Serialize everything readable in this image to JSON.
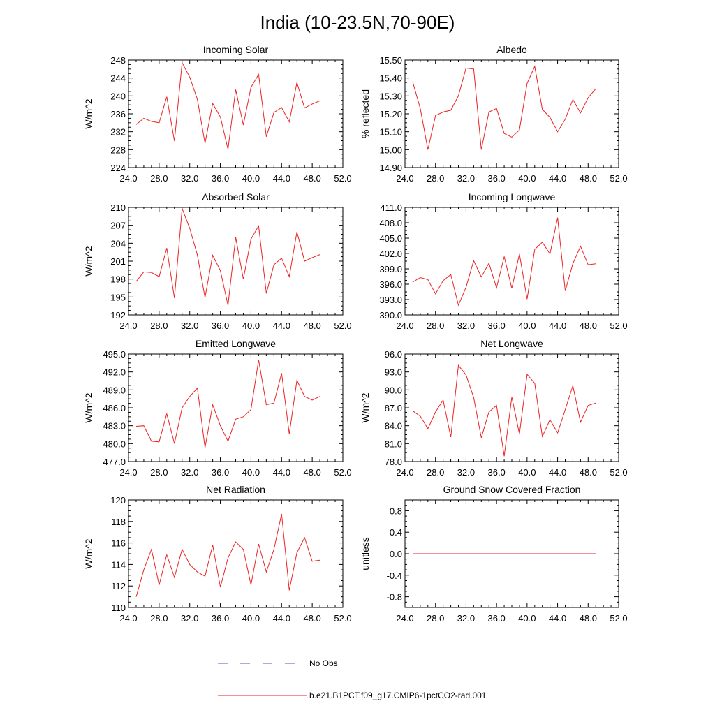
{
  "figure": {
    "title": "India (10-23.5N,70-90E)"
  },
  "legend": {
    "entries": [
      {
        "label": "No Obs",
        "color": "#5a5ab4",
        "style": "dashed"
      },
      {
        "label": "b.e21.B1PCT.f09_g17.CMIP6-1pctCO2-rad.001",
        "color": "#ee2222",
        "style": "solid"
      }
    ]
  },
  "colors": {
    "series": "#ee2222",
    "axis": "#000000",
    "obs": "#5a5ab4"
  },
  "chart_data": [
    {
      "type": "line",
      "title": "Incoming Solar",
      "ylabel": "W/m^2",
      "xlim": [
        24,
        52
      ],
      "ylim": [
        224,
        248
      ],
      "xticks": [
        "24.0",
        "28.0",
        "32.0",
        "36.0",
        "40.0",
        "44.0",
        "48.0",
        "52.0"
      ],
      "xtick_values": [
        24,
        28,
        32,
        36,
        40,
        44,
        48,
        52
      ],
      "yticks": [
        "224",
        "228",
        "232",
        "236",
        "240",
        "244",
        "248"
      ],
      "ytick_values": [
        224,
        228,
        232,
        236,
        240,
        244,
        248
      ],
      "x": [
        25,
        26,
        27,
        28,
        29,
        30,
        31,
        32,
        33,
        34,
        35,
        36,
        37,
        38,
        39,
        40,
        41,
        42,
        43,
        44,
        45,
        46,
        47,
        48,
        49
      ],
      "series": [
        {
          "values": [
            233.6,
            235.0,
            234.3,
            234.0,
            239.8,
            229.9,
            247.4,
            244.2,
            239.2,
            229.4,
            238.3,
            235.3,
            228.1,
            241.4,
            233.5,
            241.9,
            244.8,
            230.9,
            236.3,
            237.4,
            234.2,
            243.0,
            237.3,
            238.2,
            238.9
          ]
        }
      ]
    },
    {
      "type": "line",
      "title": "Albedo",
      "ylabel": "% reflected",
      "xlim": [
        24,
        52
      ],
      "ylim": [
        14.9,
        15.5
      ],
      "xticks": [
        "24.0",
        "28.0",
        "32.0",
        "36.0",
        "40.0",
        "44.0",
        "48.0",
        "52.0"
      ],
      "xtick_values": [
        24,
        28,
        32,
        36,
        40,
        44,
        48,
        52
      ],
      "yticks": [
        "14.90",
        "15.00",
        "15.10",
        "15.20",
        "15.30",
        "15.40",
        "15.50"
      ],
      "ytick_values": [
        14.9,
        15.0,
        15.1,
        15.2,
        15.3,
        15.4,
        15.5
      ],
      "x": [
        25,
        26,
        27,
        28,
        29,
        30,
        31,
        32,
        33,
        34,
        35,
        36,
        37,
        38,
        39,
        40,
        41,
        42,
        43,
        44,
        45,
        46,
        47,
        48,
        49
      ],
      "series": [
        {
          "values": [
            15.38,
            15.23,
            15.0,
            15.19,
            15.21,
            15.22,
            15.3,
            15.455,
            15.45,
            15.0,
            15.21,
            15.23,
            15.09,
            15.07,
            15.11,
            15.37,
            15.465,
            15.225,
            15.18,
            15.1,
            15.17,
            15.28,
            15.205,
            15.29,
            15.34
          ]
        }
      ]
    },
    {
      "type": "line",
      "title": "Absorbed Solar",
      "ylabel": "W/m^2",
      "xlim": [
        24,
        52
      ],
      "ylim": [
        192,
        210
      ],
      "xticks": [
        "24.0",
        "28.0",
        "32.0",
        "36.0",
        "40.0",
        "44.0",
        "48.0",
        "52.0"
      ],
      "xtick_values": [
        24,
        28,
        32,
        36,
        40,
        44,
        48,
        52
      ],
      "yticks": [
        "192",
        "195",
        "198",
        "201",
        "204",
        "207",
        "210"
      ],
      "ytick_values": [
        192,
        195,
        198,
        201,
        204,
        207,
        210
      ],
      "x": [
        25,
        26,
        27,
        28,
        29,
        30,
        31,
        32,
        33,
        34,
        35,
        36,
        37,
        38,
        39,
        40,
        41,
        42,
        43,
        44,
        45,
        46,
        47,
        48,
        49
      ],
      "series": [
        {
          "values": [
            197.6,
            199.2,
            199.1,
            198.4,
            203.2,
            194.8,
            209.8,
            206.5,
            202.0,
            194.9,
            202.0,
            199.4,
            193.6,
            205.0,
            198.0,
            204.7,
            206.9,
            195.6,
            200.4,
            201.5,
            198.4,
            205.9,
            201.0,
            201.6,
            202.1
          ]
        }
      ]
    },
    {
      "type": "line",
      "title": "Incoming Longwave",
      "ylabel": "",
      "xlim": [
        24,
        52
      ],
      "ylim": [
        390,
        411
      ],
      "xticks": [
        "24.0",
        "28.0",
        "32.0",
        "36.0",
        "40.0",
        "44.0",
        "48.0",
        "52.0"
      ],
      "xtick_values": [
        24,
        28,
        32,
        36,
        40,
        44,
        48,
        52
      ],
      "yticks": [
        "390.0",
        "393.0",
        "396.0",
        "399.0",
        "402.0",
        "405.0",
        "408.0",
        "411.0"
      ],
      "ytick_values": [
        390,
        393,
        396,
        399,
        402,
        405,
        408,
        411
      ],
      "x": [
        25,
        26,
        27,
        28,
        29,
        30,
        31,
        32,
        33,
        34,
        35,
        36,
        37,
        38,
        39,
        40,
        41,
        42,
        43,
        44,
        45,
        46,
        47,
        48,
        49
      ],
      "series": [
        {
          "values": [
            396.4,
            397.3,
            396.9,
            394.1,
            396.7,
            397.9,
            391.9,
            395.4,
            400.6,
            397.4,
            400.1,
            395.3,
            401.4,
            395.2,
            401.9,
            393.1,
            402.8,
            404.2,
            401.9,
            409.0,
            394.7,
            400.0,
            403.4,
            399.8,
            400.0
          ]
        }
      ]
    },
    {
      "type": "line",
      "title": "Emitted Longwave",
      "ylabel": "W/m^2",
      "xlim": [
        24,
        52
      ],
      "ylim": [
        477,
        495
      ],
      "xticks": [
        "24.0",
        "28.0",
        "32.0",
        "36.0",
        "40.0",
        "44.0",
        "48.0",
        "52.0"
      ],
      "xtick_values": [
        24,
        28,
        32,
        36,
        40,
        44,
        48,
        52
      ],
      "yticks": [
        "477.0",
        "480.0",
        "483.0",
        "486.0",
        "489.0",
        "492.0",
        "495.0"
      ],
      "ytick_values": [
        477,
        480,
        483,
        486,
        489,
        492,
        495
      ],
      "x": [
        25,
        26,
        27,
        28,
        29,
        30,
        31,
        32,
        33,
        34,
        35,
        36,
        37,
        38,
        39,
        40,
        41,
        42,
        43,
        44,
        45,
        46,
        47,
        48,
        49
      ],
      "series": [
        {
          "values": [
            482.9,
            483.0,
            480.4,
            480.3,
            485.0,
            480.0,
            486.0,
            487.9,
            489.3,
            479.3,
            486.5,
            483.0,
            480.4,
            484.1,
            484.5,
            485.7,
            494.0,
            486.5,
            486.8,
            491.8,
            481.6,
            490.6,
            487.9,
            487.3,
            487.9
          ]
        }
      ]
    },
    {
      "type": "line",
      "title": "Net Longwave",
      "ylabel": "W/m^2",
      "xlim": [
        24,
        52
      ],
      "ylim": [
        78,
        96
      ],
      "xticks": [
        "24.0",
        "28.0",
        "32.0",
        "36.0",
        "40.0",
        "44.0",
        "48.0",
        "52.0"
      ],
      "xtick_values": [
        24,
        28,
        32,
        36,
        40,
        44,
        48,
        52
      ],
      "yticks": [
        "78.0",
        "81.0",
        "84.0",
        "87.0",
        "90.0",
        "93.0",
        "96.0"
      ],
      "ytick_values": [
        78,
        81,
        84,
        87,
        90,
        93,
        96
      ],
      "x": [
        25,
        26,
        27,
        28,
        29,
        30,
        31,
        32,
        33,
        34,
        35,
        36,
        37,
        38,
        39,
        40,
        41,
        42,
        43,
        44,
        45,
        46,
        47,
        48,
        49
      ],
      "series": [
        {
          "values": [
            86.5,
            85.6,
            83.5,
            86.3,
            88.3,
            82.1,
            94.1,
            92.5,
            88.7,
            82.0,
            86.3,
            87.4,
            78.9,
            88.8,
            82.6,
            92.6,
            91.1,
            82.2,
            85.0,
            82.8,
            86.7,
            90.7,
            84.6,
            87.4,
            87.8
          ]
        }
      ]
    },
    {
      "type": "line",
      "title": "Net Radiation",
      "ylabel": "W/m^2",
      "xlim": [
        24,
        52
      ],
      "ylim": [
        110,
        120
      ],
      "xticks": [
        "24.0",
        "28.0",
        "32.0",
        "36.0",
        "40.0",
        "44.0",
        "48.0",
        "52.0"
      ],
      "xtick_values": [
        24,
        28,
        32,
        36,
        40,
        44,
        48,
        52
      ],
      "yticks": [
        "110",
        "112",
        "114",
        "116",
        "118",
        "120"
      ],
      "ytick_values": [
        110,
        112,
        114,
        116,
        118,
        120
      ],
      "x": [
        25,
        26,
        27,
        28,
        29,
        30,
        31,
        32,
        33,
        34,
        35,
        36,
        37,
        38,
        39,
        40,
        41,
        42,
        43,
        44,
        45,
        46,
        47,
        48,
        49
      ],
      "series": [
        {
          "values": [
            111.0,
            113.5,
            115.4,
            112.1,
            114.9,
            112.8,
            115.4,
            114.0,
            113.3,
            112.9,
            115.8,
            111.9,
            114.6,
            116.1,
            115.4,
            112.1,
            115.9,
            113.3,
            115.4,
            118.7,
            111.6,
            115.1,
            116.5,
            114.3,
            114.4
          ]
        }
      ]
    },
    {
      "type": "line",
      "title": "Ground Snow Covered Fraction",
      "ylabel": "unitless",
      "xlim": [
        24,
        52
      ],
      "ylim": [
        -1.0,
        1.0
      ],
      "xticks": [
        "24.0",
        "28.0",
        "32.0",
        "36.0",
        "40.0",
        "44.0",
        "48.0",
        "52.0"
      ],
      "xtick_values": [
        24,
        28,
        32,
        36,
        40,
        44,
        48,
        52
      ],
      "yticks": [
        "-0.8",
        "-0.4",
        "0.0",
        "0.4",
        "0.8"
      ],
      "ytick_values": [
        -0.8,
        -0.4,
        0.0,
        0.4,
        0.8
      ],
      "x": [
        25,
        26,
        27,
        28,
        29,
        30,
        31,
        32,
        33,
        34,
        35,
        36,
        37,
        38,
        39,
        40,
        41,
        42,
        43,
        44,
        45,
        46,
        47,
        48,
        49
      ],
      "series": [
        {
          "values": [
            0,
            0,
            0,
            0,
            0,
            0,
            0,
            0,
            0,
            0,
            0,
            0,
            0,
            0,
            0,
            0,
            0,
            0,
            0,
            0,
            0,
            0,
            0,
            0,
            0
          ]
        }
      ]
    }
  ]
}
